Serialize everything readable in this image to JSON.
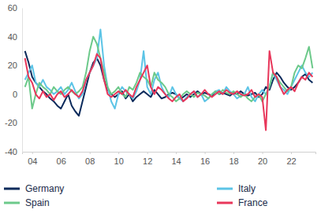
{
  "chart_data": {
    "type": "line",
    "x": [
      2003.5,
      2003.75,
      2004,
      2004.25,
      2004.5,
      2004.75,
      2005,
      2005.25,
      2005.5,
      2005.75,
      2006,
      2006.25,
      2006.5,
      2006.75,
      2007,
      2007.25,
      2007.5,
      2007.75,
      2008,
      2008.25,
      2008.5,
      2008.75,
      2009,
      2009.25,
      2009.5,
      2009.75,
      2010,
      2010.25,
      2010.5,
      2010.75,
      2011,
      2011.25,
      2011.5,
      2011.75,
      2012,
      2012.25,
      2012.5,
      2012.75,
      2013,
      2013.25,
      2013.5,
      2013.75,
      2014,
      2014.25,
      2014.5,
      2014.75,
      2015,
      2015.25,
      2015.5,
      2015.75,
      2016,
      2016.25,
      2016.5,
      2016.75,
      2017,
      2017.25,
      2017.5,
      2017.75,
      2018,
      2018.25,
      2018.5,
      2018.75,
      2019,
      2019.25,
      2019.5,
      2019.75,
      2020,
      2020.25,
      2020.5,
      2020.75,
      2021,
      2021.25,
      2021.5,
      2021.75,
      2022,
      2022.25,
      2022.5,
      2022.75,
      2023,
      2023.25,
      2023.5
    ],
    "series": [
      {
        "name": "Germany",
        "color": "#0b2a5b",
        "values": [
          30,
          22,
          12,
          8,
          5,
          2,
          0,
          -3,
          -5,
          -8,
          -10,
          -5,
          0,
          -8,
          -12,
          -15,
          -5,
          5,
          15,
          22,
          25,
          20,
          10,
          3,
          0,
          -2,
          0,
          2,
          -3,
          0,
          -5,
          -2,
          0,
          2,
          0,
          -2,
          3,
          0,
          -3,
          -2,
          0,
          1,
          0,
          -3,
          -2,
          0,
          -2,
          0,
          2,
          0,
          1,
          0,
          -1,
          2,
          0,
          1,
          0,
          -1,
          1,
          0,
          2,
          0,
          -1,
          0,
          1,
          -2,
          0,
          5,
          3,
          10,
          15,
          12,
          8,
          5,
          3,
          5,
          8,
          12,
          14,
          10,
          8
        ]
      },
      {
        "name": "Italy",
        "color": "#5cc4e6",
        "values": [
          10,
          15,
          20,
          8,
          5,
          10,
          5,
          3,
          0,
          2,
          5,
          0,
          3,
          8,
          2,
          -3,
          0,
          10,
          15,
          20,
          25,
          45,
          20,
          5,
          -5,
          -10,
          0,
          5,
          2,
          0,
          -3,
          2,
          10,
          30,
          5,
          0,
          10,
          15,
          5,
          0,
          -2,
          5,
          0,
          -3,
          -5,
          -2,
          0,
          2,
          -2,
          0,
          -5,
          -3,
          0,
          2,
          3,
          0,
          5,
          2,
          0,
          -3,
          -1,
          0,
          5,
          -2,
          -5,
          0,
          3,
          0,
          5,
          15,
          10,
          5,
          3,
          0,
          5,
          10,
          15,
          20,
          15,
          12,
          15
        ]
      },
      {
        "name": "Spain",
        "color": "#6cc98a",
        "values": [
          5,
          12,
          -10,
          0,
          8,
          5,
          3,
          0,
          5,
          2,
          0,
          3,
          5,
          2,
          0,
          2,
          5,
          15,
          30,
          40,
          35,
          25,
          15,
          5,
          0,
          2,
          5,
          0,
          -2,
          5,
          3,
          8,
          15,
          12,
          10,
          5,
          15,
          10,
          8,
          5,
          0,
          -2,
          -5,
          -3,
          0,
          2,
          0,
          -2,
          1,
          0,
          -1,
          -3,
          0,
          2,
          0,
          3,
          1,
          0,
          2,
          0,
          -2,
          0,
          -3,
          -5,
          -2,
          0,
          -5,
          0,
          5,
          15,
          12,
          8,
          5,
          2,
          5,
          15,
          20,
          18,
          25,
          33,
          18
        ]
      },
      {
        "name": "France",
        "color": "#e8365a",
        "values": [
          25,
          12,
          8,
          0,
          -3,
          2,
          -2,
          0,
          -4,
          0,
          2,
          -2,
          0,
          3,
          0,
          -2,
          2,
          10,
          15,
          20,
          28,
          25,
          10,
          0,
          -2,
          0,
          2,
          0,
          3,
          0,
          -2,
          5,
          10,
          15,
          20,
          5,
          0,
          5,
          3,
          0,
          -3,
          -5,
          -2,
          0,
          -5,
          -3,
          0,
          2,
          -2,
          0,
          3,
          0,
          -2,
          0,
          2,
          0,
          3,
          1,
          0,
          2,
          0,
          -1,
          0,
          3,
          -2,
          0,
          -2,
          -25,
          30,
          15,
          12,
          5,
          0,
          3,
          5,
          2,
          8,
          12,
          10,
          15,
          12
        ]
      }
    ],
    "xlim": [
      2003.3,
      2023.7
    ],
    "xticks": [
      {
        "value": 2004,
        "label": "04"
      },
      {
        "value": 2006,
        "label": "06"
      },
      {
        "value": 2008,
        "label": "08"
      },
      {
        "value": 2010,
        "label": "10"
      },
      {
        "value": 2012,
        "label": "12"
      },
      {
        "value": 2014,
        "label": "14"
      },
      {
        "value": 2016,
        "label": "16"
      },
      {
        "value": 2018,
        "label": "18"
      },
      {
        "value": 2020,
        "label": "20"
      },
      {
        "value": 2022,
        "label": "22"
      }
    ],
    "ylim": [
      -40,
      60
    ],
    "yticks": [
      -40,
      -20,
      0,
      20,
      40,
      60
    ],
    "grid": false,
    "legend": "bottom"
  }
}
